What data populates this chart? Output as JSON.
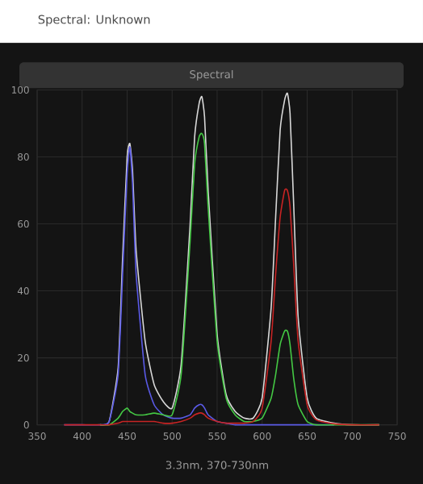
{
  "chart_data": {
    "type": "line",
    "title": "Spectral: Unknown",
    "subtitle": "Spectral",
    "xlabel": "3.3nm, 370-730nm",
    "x": [
      380,
      400,
      420,
      430,
      440,
      445,
      450,
      453,
      456,
      460,
      470,
      480,
      490,
      500,
      510,
      520,
      525,
      530,
      533,
      536,
      540,
      550,
      560,
      570,
      580,
      590,
      600,
      610,
      615,
      620,
      625,
      628,
      631,
      635,
      640,
      650,
      660,
      680,
      700,
      730
    ],
    "series": [
      {
        "color": "#d8d8d8",
        "values": [
          null,
          null,
          0,
          1,
          17,
          50,
          80,
          84,
          76,
          52,
          25,
          12,
          7,
          5,
          18,
          60,
          86,
          96,
          98,
          92,
          70,
          27,
          9,
          4,
          2,
          2,
          8,
          35,
          62,
          88,
          97,
          99,
          93,
          66,
          32,
          8,
          2,
          0.5,
          0,
          0
        ]
      },
      {
        "color": "#5a5ae6",
        "values": [
          0,
          0,
          0,
          1,
          15,
          45,
          75,
          83,
          72,
          45,
          15,
          6,
          3,
          2,
          2,
          3,
          5,
          6,
          6,
          5,
          3,
          1,
          0.5,
          0,
          0,
          0,
          0,
          0,
          0,
          0,
          0,
          0,
          0,
          0,
          0,
          0,
          0,
          0,
          null,
          null
        ]
      },
      {
        "color": "#44c844",
        "values": [
          null,
          null,
          0,
          0,
          2,
          4,
          5,
          4,
          3.5,
          3,
          3,
          3.5,
          3,
          3,
          15,
          55,
          78,
          86,
          87,
          84,
          65,
          25,
          8,
          3,
          1,
          1,
          2,
          8,
          15,
          24,
          28,
          28,
          24,
          14,
          6,
          1,
          0,
          0,
          0,
          0
        ]
      },
      {
        "color": "#c82424",
        "values": [
          0,
          0,
          0,
          0,
          0.5,
          1,
          1,
          1,
          1,
          1,
          1,
          1,
          0.5,
          0.5,
          1,
          2,
          3,
          3.5,
          3.5,
          3,
          2,
          1,
          0.5,
          0.5,
          0.5,
          1,
          5,
          25,
          45,
          62,
          70,
          70,
          65,
          48,
          25,
          6,
          1.5,
          0.3,
          0,
          0
        ]
      }
    ],
    "xlim": [
      350,
      750
    ],
    "xticks": [
      350,
      400,
      450,
      500,
      550,
      600,
      650,
      700,
      750
    ],
    "ylim": [
      0,
      100
    ],
    "yticks": [
      0,
      20,
      40,
      60,
      80,
      100
    ],
    "grid": true
  }
}
